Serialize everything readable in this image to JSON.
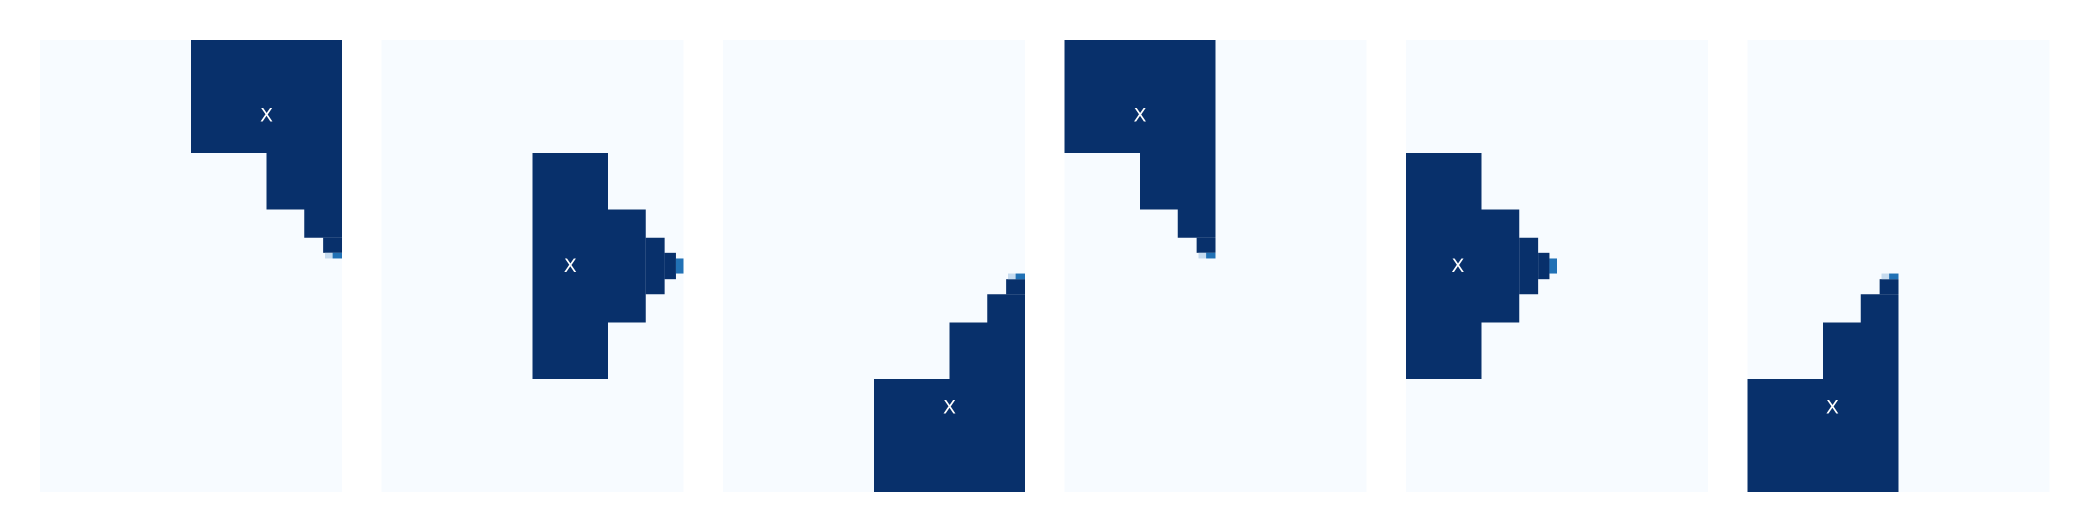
{
  "colors": {
    "background": "#f7fbff",
    "fill": "#08306b",
    "edge_mid": "#2171b5",
    "edge_light": "#c6dbef",
    "marker": "#ffffff"
  },
  "grid": {
    "rows": 24,
    "cols": 16
  },
  "panels": [
    {
      "id": "panel-1",
      "marker_label": "X",
      "marker_cell": {
        "row": 4,
        "col": 12
      },
      "strips": [
        {
          "row_start": 0,
          "row_end": 6,
          "col_start": 8,
          "col_end": 16,
          "shade": "fill"
        },
        {
          "row_start": 6,
          "row_end": 9,
          "col_start": 12,
          "col_end": 16,
          "shade": "fill"
        },
        {
          "row_start": 9,
          "row_end": 10.5,
          "col_start": 14,
          "col_end": 16,
          "shade": "fill"
        },
        {
          "row_start": 10.5,
          "row_end": 11.3,
          "col_start": 15,
          "col_end": 16,
          "shade": "fill"
        },
        {
          "row_start": 11.3,
          "row_end": 11.6,
          "col_start": 15.5,
          "col_end": 16,
          "shade": "edge_mid"
        },
        {
          "row_start": 11.3,
          "row_end": 11.6,
          "col_start": 15.1,
          "col_end": 15.5,
          "shade": "edge_light"
        }
      ]
    },
    {
      "id": "panel-2",
      "marker_label": "X",
      "marker_cell": {
        "row": 12,
        "col": 10
      },
      "strips": [
        {
          "row_start": 6,
          "row_end": 18,
          "col_start": 8,
          "col_end": 12,
          "shade": "fill"
        },
        {
          "row_start": 9,
          "row_end": 15,
          "col_start": 12,
          "col_end": 14,
          "shade": "fill"
        },
        {
          "row_start": 10.5,
          "row_end": 13.5,
          "col_start": 14,
          "col_end": 15,
          "shade": "fill"
        },
        {
          "row_start": 11.3,
          "row_end": 12.7,
          "col_start": 15,
          "col_end": 15.6,
          "shade": "fill"
        },
        {
          "row_start": 11.6,
          "row_end": 12.4,
          "col_start": 15.6,
          "col_end": 16,
          "shade": "edge_mid"
        }
      ]
    },
    {
      "id": "panel-3",
      "marker_label": "X",
      "marker_cell": {
        "row": 19.5,
        "col": 12
      },
      "strips": [
        {
          "row_start": 18,
          "row_end": 24,
          "col_start": 8,
          "col_end": 16,
          "shade": "fill"
        },
        {
          "row_start": 15,
          "row_end": 18,
          "col_start": 12,
          "col_end": 16,
          "shade": "fill"
        },
        {
          "row_start": 13.5,
          "row_end": 15,
          "col_start": 14,
          "col_end": 16,
          "shade": "fill"
        },
        {
          "row_start": 12.7,
          "row_end": 13.5,
          "col_start": 15,
          "col_end": 16,
          "shade": "fill"
        },
        {
          "row_start": 12.4,
          "row_end": 12.7,
          "col_start": 15.5,
          "col_end": 16,
          "shade": "edge_mid"
        },
        {
          "row_start": 12.4,
          "row_end": 12.7,
          "col_start": 15.1,
          "col_end": 15.5,
          "shade": "edge_light"
        }
      ]
    },
    {
      "id": "panel-4",
      "marker_label": "X",
      "marker_cell": {
        "row": 4,
        "col": 4
      },
      "strips": [
        {
          "row_start": 0,
          "row_end": 6,
          "col_start": 0,
          "col_end": 8,
          "shade": "fill"
        },
        {
          "row_start": 6,
          "row_end": 9,
          "col_start": 4,
          "col_end": 8,
          "shade": "fill"
        },
        {
          "row_start": 9,
          "row_end": 10.5,
          "col_start": 6,
          "col_end": 8,
          "shade": "fill"
        },
        {
          "row_start": 10.5,
          "row_end": 11.3,
          "col_start": 7,
          "col_end": 8,
          "shade": "fill"
        },
        {
          "row_start": 11.3,
          "row_end": 11.6,
          "col_start": 7.5,
          "col_end": 8,
          "shade": "edge_mid"
        },
        {
          "row_start": 11.3,
          "row_end": 11.6,
          "col_start": 7.1,
          "col_end": 7.5,
          "shade": "edge_light"
        }
      ]
    },
    {
      "id": "panel-5",
      "marker_label": "X",
      "marker_cell": {
        "row": 12,
        "col": 2.75
      },
      "strips": [
        {
          "row_start": 6,
          "row_end": 18,
          "col_start": 0,
          "col_end": 4,
          "shade": "fill"
        },
        {
          "row_start": 9,
          "row_end": 15,
          "col_start": 4,
          "col_end": 6,
          "shade": "fill"
        },
        {
          "row_start": 10.5,
          "row_end": 13.5,
          "col_start": 6,
          "col_end": 7,
          "shade": "fill"
        },
        {
          "row_start": 11.3,
          "row_end": 12.7,
          "col_start": 7,
          "col_end": 7.6,
          "shade": "fill"
        },
        {
          "row_start": 11.6,
          "row_end": 12.4,
          "col_start": 7.6,
          "col_end": 8,
          "shade": "edge_mid"
        }
      ]
    },
    {
      "id": "panel-6",
      "marker_label": "X",
      "marker_cell": {
        "row": 19.5,
        "col": 4.5
      },
      "strips": [
        {
          "row_start": 18,
          "row_end": 24,
          "col_start": 0,
          "col_end": 8,
          "shade": "fill"
        },
        {
          "row_start": 15,
          "row_end": 18,
          "col_start": 4,
          "col_end": 8,
          "shade": "fill"
        },
        {
          "row_start": 13.5,
          "row_end": 15,
          "col_start": 6,
          "col_end": 8,
          "shade": "fill"
        },
        {
          "row_start": 12.7,
          "row_end": 13.5,
          "col_start": 7,
          "col_end": 8,
          "shade": "fill"
        },
        {
          "row_start": 12.4,
          "row_end": 12.7,
          "col_start": 7.5,
          "col_end": 8,
          "shade": "edge_mid"
        },
        {
          "row_start": 12.4,
          "row_end": 12.7,
          "col_start": 7.1,
          "col_end": 7.5,
          "shade": "edge_light"
        }
      ]
    }
  ]
}
